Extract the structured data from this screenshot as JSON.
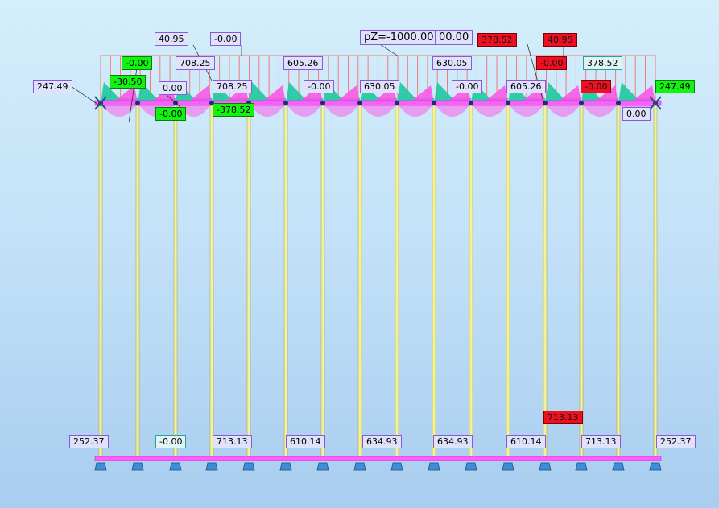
{
  "colors": {
    "column": "#f2f29a",
    "beam": "#ff5cff",
    "load_line": "#f07a7a",
    "moment_fill": "#ff4fe8",
    "moment_green": "#1fc9a0",
    "support": "#3d8ed6",
    "label_border": "#8a5ad6",
    "label_bg": "#dfe2fb",
    "label_green": "#12f312",
    "label_red": "#ee1020"
  },
  "load": {
    "label": "pZ=-1000.00",
    "label_partial": "00.00"
  },
  "top_labels": [
    {
      "text": "247.49",
      "style": "normal"
    },
    {
      "text": "-0.00",
      "style": "green"
    },
    {
      "text": "-30.50",
      "style": "green"
    },
    {
      "text": "40.95",
      "style": "normal"
    },
    {
      "text": "708.25",
      "style": "normal"
    },
    {
      "text": "-0.00",
      "style": "normal"
    },
    {
      "text": "0.00",
      "style": "normal"
    },
    {
      "text": "-0.00",
      "style": "green"
    },
    {
      "text": "708.25",
      "style": "normal"
    },
    {
      "text": "-378.52",
      "style": "green"
    },
    {
      "text": "605.26",
      "style": "normal"
    },
    {
      "text": "-0.00",
      "style": "normal"
    },
    {
      "text": "630.05",
      "style": "normal"
    },
    {
      "text": "630.05",
      "style": "normal"
    },
    {
      "text": "-0.00",
      "style": "normal"
    },
    {
      "text": "378.52",
      "style": "red"
    },
    {
      "text": "40.95",
      "style": "red"
    },
    {
      "text": "-0.00",
      "style": "red"
    },
    {
      "text": "605.26",
      "style": "normal"
    },
    {
      "text": "378.52",
      "style": "teal"
    },
    {
      "text": "-0.00",
      "style": "red"
    },
    {
      "text": "247.49",
      "style": "green"
    },
    {
      "text": "0.00",
      "style": "normal"
    }
  ],
  "bottom_labels": [
    {
      "text": "252.37",
      "style": "normal"
    },
    {
      "text": "-0.00",
      "style": "teal"
    },
    {
      "text": "713.13",
      "style": "normal"
    },
    {
      "text": "610.14",
      "style": "normal"
    },
    {
      "text": "634.93",
      "style": "normal"
    },
    {
      "text": "634.93",
      "style": "normal"
    },
    {
      "text": "610.14",
      "style": "normal"
    },
    {
      "text": "713.13",
      "style": "red"
    },
    {
      "text": "713.13",
      "style": "normal"
    },
    {
      "text": "252.37",
      "style": "normal"
    }
  ]
}
